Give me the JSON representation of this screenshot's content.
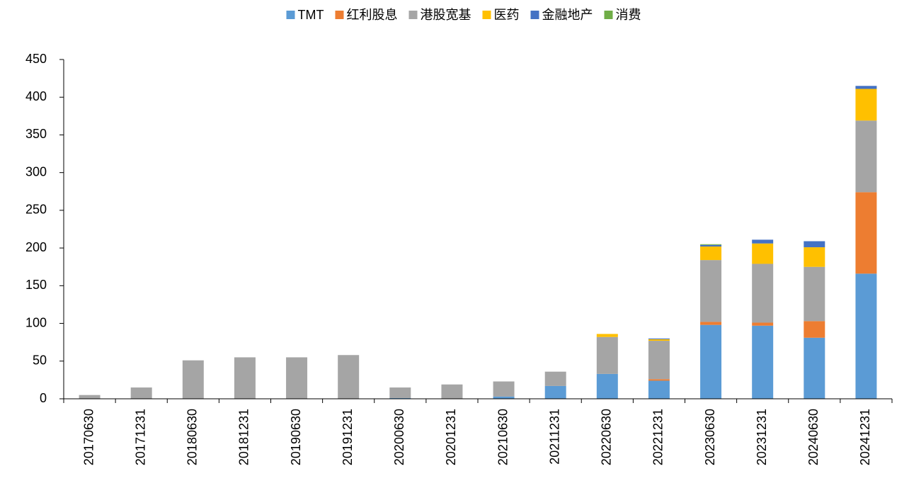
{
  "chart_data": {
    "type": "stacked_bar",
    "categories": [
      "20170630",
      "20171231",
      "20180630",
      "20181231",
      "20190630",
      "20191231",
      "20200630",
      "20201231",
      "20210630",
      "20211231",
      "20220630",
      "20221231",
      "20230630",
      "20231231",
      "20240630",
      "20241231"
    ],
    "series": [
      {
        "name": "TMT",
        "color": "#5b9bd5",
        "values": [
          0,
          0,
          0,
          0,
          0,
          0,
          1,
          0,
          3,
          17,
          33,
          24,
          98,
          97,
          81,
          166
        ]
      },
      {
        "name": "红利股息",
        "color": "#ed7d31",
        "values": [
          0,
          0,
          0,
          0,
          0,
          0,
          0,
          0,
          0,
          0,
          0,
          2,
          4,
          4,
          22,
          108
        ]
      },
      {
        "name": "港股宽基",
        "color": "#a5a5a5",
        "values": [
          5,
          15,
          51,
          55,
          55,
          58,
          14,
          19,
          20,
          19,
          49,
          51,
          82,
          78,
          72,
          95
        ]
      },
      {
        "name": "医药",
        "color": "#ffc000",
        "values": [
          0,
          0,
          0,
          0,
          0,
          0,
          0,
          0,
          0,
          0,
          4,
          2,
          18,
          27,
          26,
          42
        ]
      },
      {
        "name": "金融地产",
        "color": "#4472c4",
        "values": [
          0,
          0,
          0,
          0,
          0,
          0,
          0,
          0,
          0,
          0,
          0,
          1,
          2,
          5,
          8,
          4
        ]
      },
      {
        "name": "消费",
        "color": "#70ad47",
        "values": [
          0,
          0,
          0,
          0,
          0,
          0,
          0,
          0,
          0,
          0,
          0,
          0,
          1,
          0,
          0,
          0
        ]
      }
    ],
    "ylim": [
      0,
      450
    ],
    "yticks": [
      0,
      50,
      100,
      150,
      200,
      250,
      300,
      350,
      400,
      450
    ],
    "grid": false
  }
}
